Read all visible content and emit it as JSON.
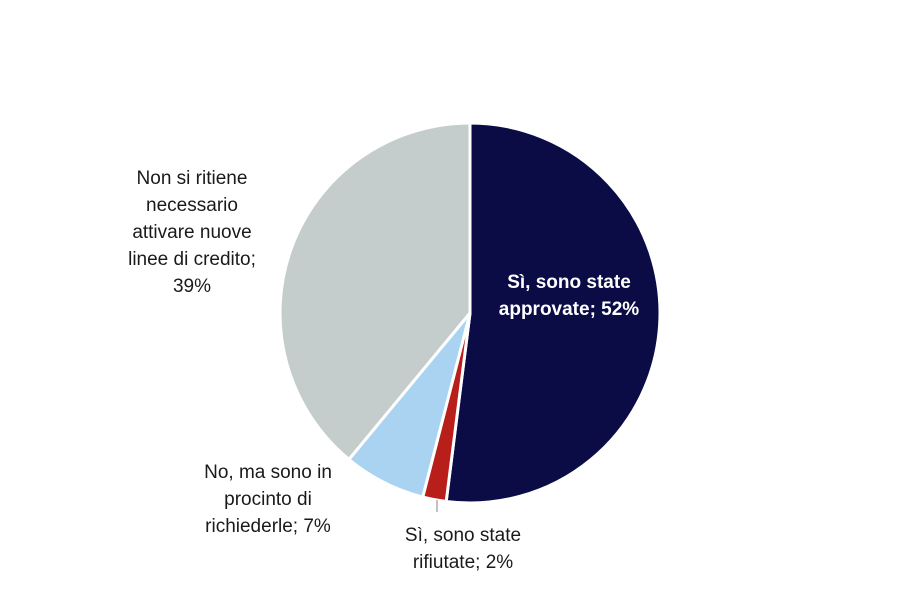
{
  "chart_data": {
    "type": "pie",
    "title": "",
    "slices": [
      {
        "label_lines": [
          "Sì, sono state",
          "approvate; 52%"
        ],
        "value": 52,
        "color": "#0b0c45",
        "label_position": "inside"
      },
      {
        "label_lines": [
          "Sì, sono state",
          "rifiutate; 2%"
        ],
        "value": 2,
        "color": "#b81f1a",
        "label_position": "outside-bottom"
      },
      {
        "label_lines": [
          "No, ma sono in",
          "procinto di",
          "richiederle; 7%"
        ],
        "value": 7,
        "color": "#a9d3f1",
        "label_position": "outside-bottom-left"
      },
      {
        "label_lines": [
          "Non si ritiene",
          "necessario",
          "attivare nuove",
          "linee di credito;",
          "39%"
        ],
        "value": 39,
        "color": "#c4cccc",
        "label_position": "outside-left"
      }
    ]
  }
}
